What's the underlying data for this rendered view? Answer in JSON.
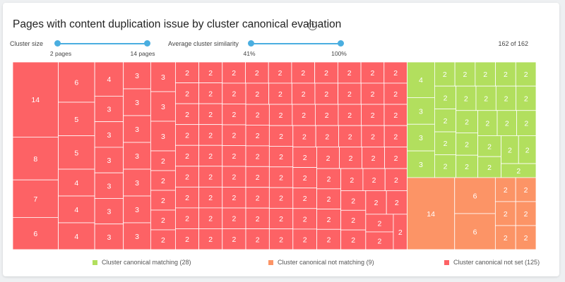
{
  "title": "Pages with content duplication issue by cluster canonical evaluation",
  "help_icon": "question-circle-icon",
  "controls": {
    "cluster_size": {
      "label": "Cluster size",
      "min_label": "2 pages",
      "max_label": "14 pages"
    },
    "similarity": {
      "label": "Average cluster similarity",
      "min_label": "41%",
      "max_label": "100%"
    },
    "count": "162 of 162"
  },
  "colors": {
    "matching": "#b2df5e",
    "not_matching": "#fc9466",
    "not_set": "#fd6265",
    "slider": "#4aaee0"
  },
  "legend": [
    {
      "key": "matching",
      "label": "Cluster canonical matching (28)"
    },
    {
      "key": "not_matching",
      "label": "Cluster canonical not matching (9)"
    },
    {
      "key": "not_set",
      "label": "Cluster canonical not set (125)"
    }
  ],
  "chart_data": {
    "type": "treemap",
    "value_meaning": "cluster size (pages)",
    "groups": [
      {
        "name": "Cluster canonical matching",
        "count": 28,
        "values": [
          2,
          2,
          2,
          2,
          2,
          2,
          2,
          2,
          2,
          2,
          2,
          2,
          2,
          2,
          2,
          2,
          2,
          2,
          2,
          2,
          2,
          2,
          2,
          2,
          3,
          3,
          3,
          4
        ]
      },
      {
        "name": "Cluster canonical not matching",
        "count": 9,
        "values": [
          2,
          2,
          2,
          2,
          2,
          2,
          6,
          6,
          14
        ]
      },
      {
        "name": "Cluster canonical not set",
        "count": 125,
        "values": [
          2,
          2,
          2,
          2,
          2,
          2,
          2,
          2,
          2,
          2,
          2,
          2,
          2,
          2,
          2,
          2,
          2,
          2,
          2,
          2,
          2,
          2,
          2,
          2,
          2,
          2,
          2,
          2,
          2,
          2,
          2,
          2,
          2,
          2,
          2,
          2,
          2,
          2,
          2,
          2,
          2,
          2,
          2,
          2,
          2,
          2,
          2,
          2,
          2,
          2,
          2,
          2,
          2,
          2,
          2,
          2,
          2,
          2,
          2,
          2,
          2,
          2,
          2,
          2,
          2,
          2,
          2,
          2,
          2,
          2,
          2,
          2,
          2,
          2,
          2,
          2,
          2,
          2,
          2,
          2,
          2,
          2,
          2,
          2,
          2,
          2,
          2,
          2,
          2,
          2,
          2,
          2,
          2,
          2,
          3,
          3,
          3,
          3,
          3,
          3,
          3,
          3,
          3,
          3,
          3,
          3,
          3,
          3,
          3,
          3,
          4,
          4,
          4,
          4,
          5,
          5,
          6,
          6,
          7,
          8,
          14
        ]
      }
    ]
  }
}
